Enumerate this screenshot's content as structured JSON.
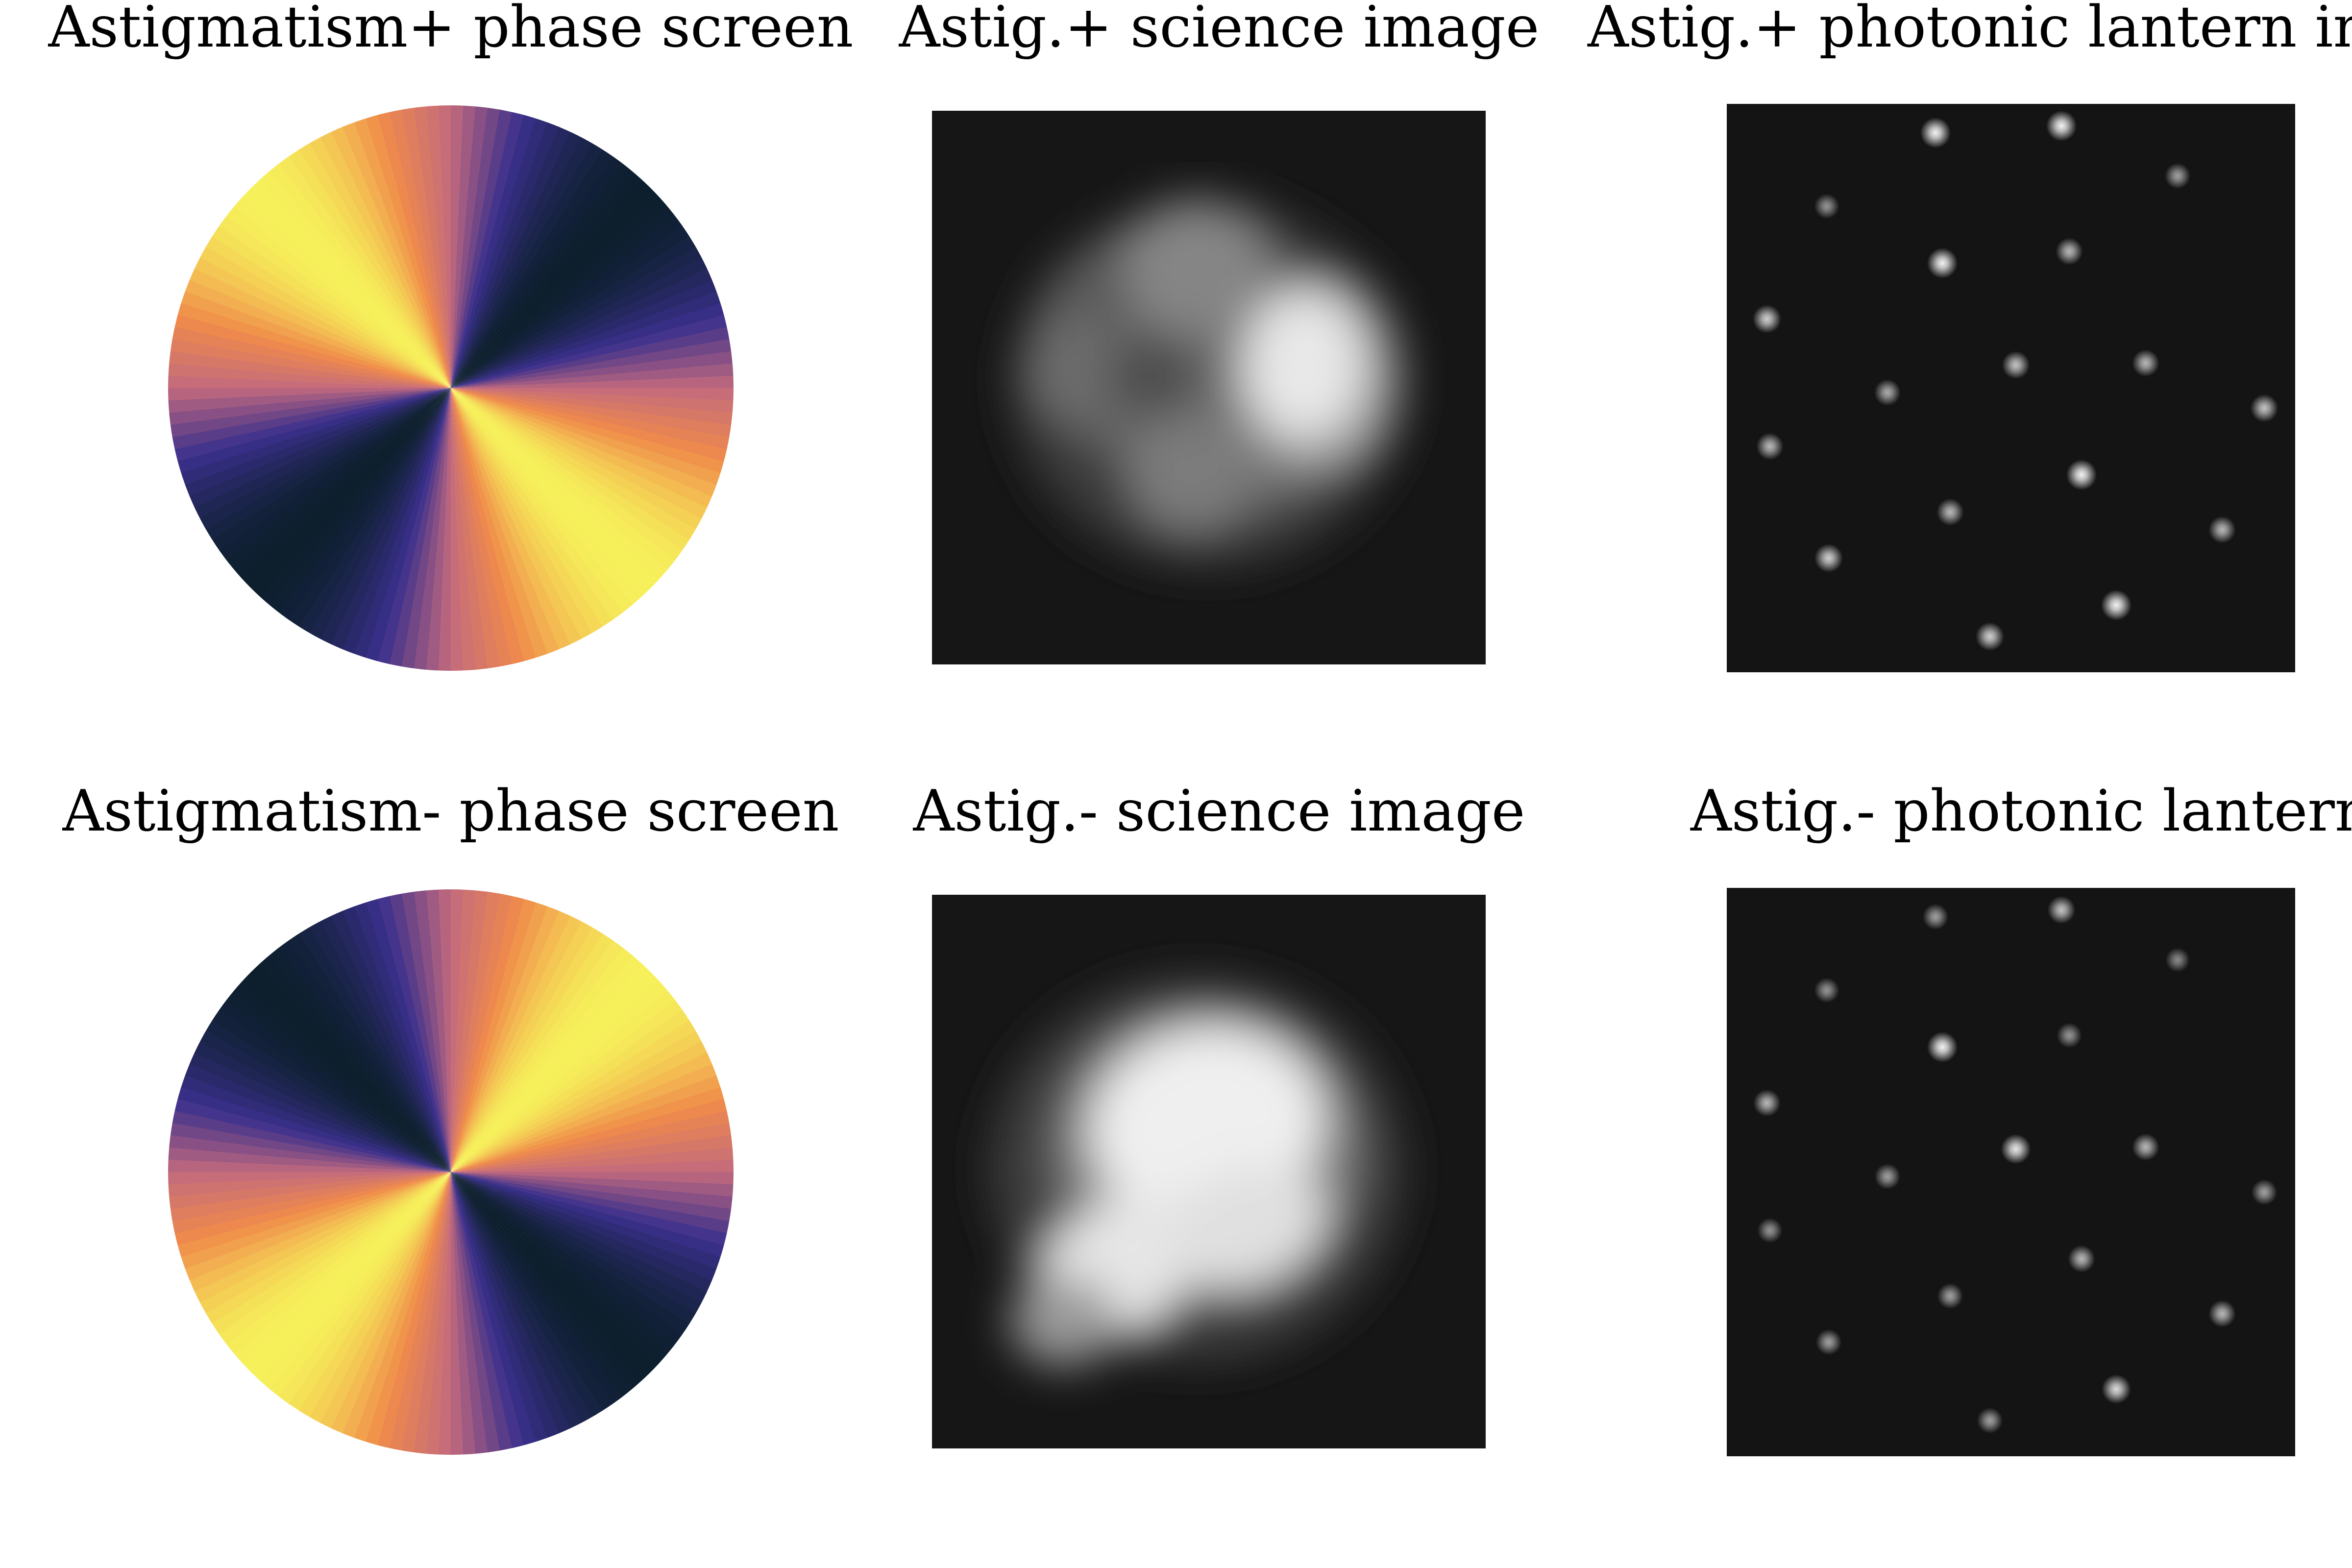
{
  "figure": {
    "panels": [
      {
        "title": "Astigmatism+ phase screen",
        "kind": "phase-screen",
        "sign": "plus",
        "colormap": [
          "#0d1f2d",
          "#3a2f8c",
          "#c36a7e",
          "#f08b4a",
          "#f6f05a"
        ]
      },
      {
        "title": "Astig.+ science image",
        "kind": "science-image",
        "sign": "plus"
      },
      {
        "title": "Astig.+ photonic lantern ima",
        "kind": "lantern-image",
        "sign": "plus",
        "spot_brightness": [
          0.95,
          0.95,
          0.55,
          0.6,
          0.95,
          0.7,
          0.8,
          0.65,
          0.75,
          0.7,
          0.75,
          0.7,
          0.95,
          0.7,
          0.7,
          0.8,
          0.95,
          0.8,
          0.75
        ]
      },
      {
        "title": "Astigmatism- phase screen",
        "kind": "phase-screen",
        "sign": "minus",
        "colormap": [
          "#0d1f2d",
          "#3a2f8c",
          "#c36a7e",
          "#f08b4a",
          "#f6f05a"
        ]
      },
      {
        "title": "Astig.- science image",
        "kind": "science-image",
        "sign": "minus"
      },
      {
        "title": "Astig.- photonic lantern",
        "kind": "lantern-image",
        "sign": "minus",
        "spot_brightness": [
          0.6,
          0.75,
          0.55,
          0.5,
          0.95,
          0.55,
          0.7,
          0.6,
          0.9,
          0.7,
          0.6,
          0.55,
          0.7,
          0.6,
          0.7,
          0.6,
          0.85,
          0.6,
          0.6
        ]
      }
    ]
  }
}
